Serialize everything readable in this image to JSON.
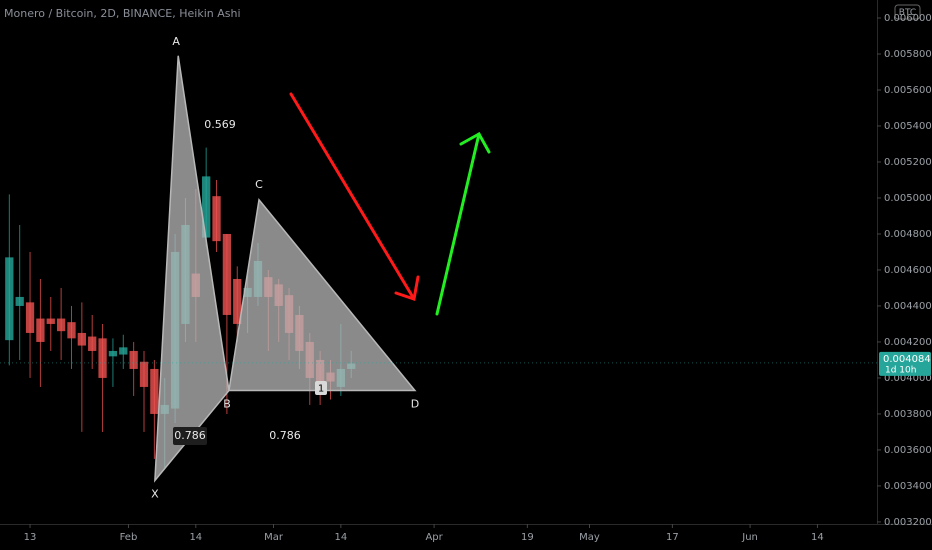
{
  "chart_data": {
    "type": "candlestick",
    "title": "Monero / Bitcoin, 2D, BINANCE, Heikin Ashi",
    "currency": "BTC",
    "x": [
      9,
      11,
      13,
      15,
      17,
      19,
      21,
      23,
      25,
      27,
      29,
      31,
      33,
      35,
      37,
      39,
      41,
      43,
      45,
      47,
      49,
      51,
      53,
      55,
      57,
      59,
      61,
      63,
      65,
      67,
      69,
      71,
      73,
      75
    ],
    "series": [
      {
        "up_color": "#26a69a",
        "down_color": "#ef5350",
        "open": [
          0.00421,
          0.0044,
          0.00442,
          0.00433,
          0.00433,
          0.00433,
          0.00431,
          0.00425,
          0.00423,
          0.00422,
          0.00412,
          0.00413,
          0.00415,
          0.00409,
          0.00405,
          0.0038,
          0.00383,
          0.0043,
          0.00458,
          0.00478,
          0.00501,
          0.0048,
          0.00455,
          0.00445,
          0.00445,
          0.00456,
          0.00452,
          0.00446,
          0.00435,
          0.0042,
          0.0041,
          0.00403,
          0.00395,
          0.00405
        ],
        "high": [
          0.00502,
          0.00485,
          0.0047,
          0.00455,
          0.00445,
          0.0045,
          0.0044,
          0.00442,
          0.00435,
          0.0043,
          0.00422,
          0.00424,
          0.0042,
          0.00415,
          0.0041,
          0.004,
          0.0048,
          0.005,
          0.00505,
          0.00528,
          0.0051,
          0.0048,
          0.00462,
          0.0046,
          0.00475,
          0.0046,
          0.00455,
          0.0045,
          0.0044,
          0.00425,
          0.00415,
          0.0041,
          0.0043,
          0.00415
        ],
        "low": [
          0.00407,
          0.0041,
          0.004,
          0.00395,
          0.00415,
          0.0041,
          0.00405,
          0.0037,
          0.00405,
          0.0037,
          0.00395,
          0.00405,
          0.0039,
          0.0037,
          0.00355,
          0.0035,
          0.00375,
          0.0042,
          0.0042,
          0.00473,
          0.0047,
          0.0038,
          0.0042,
          0.00425,
          0.0044,
          0.00415,
          0.0042,
          0.0041,
          0.00405,
          0.00385,
          0.00385,
          0.00388,
          0.0039,
          0.004
        ],
        "close": [
          0.00467,
          0.00445,
          0.00425,
          0.0042,
          0.0043,
          0.00426,
          0.00422,
          0.00418,
          0.00415,
          0.004,
          0.00415,
          0.00417,
          0.00405,
          0.00395,
          0.0038,
          0.00385,
          0.0047,
          0.00485,
          0.00445,
          0.00512,
          0.00476,
          0.00435,
          0.0043,
          0.0045,
          0.00465,
          0.00445,
          0.0044,
          0.00425,
          0.00415,
          0.004,
          0.00395,
          0.00398,
          0.00405,
          0.00408
        ]
      }
    ],
    "pattern": {
      "color": "#b8b8b8",
      "points": [
        {
          "label": "X",
          "x": 37.1,
          "y": 0.00343
        },
        {
          "label": "A",
          "x": 41.6,
          "y": 0.00579
        },
        {
          "label": "B",
          "x": 51.4,
          "y": 0.00393
        },
        {
          "label": "C",
          "x": 57.2,
          "y": 0.00499
        },
        {
          "label": "D",
          "x": 87.3,
          "y": 0.00393
        }
      ],
      "ratios": [
        0.569,
        0.786,
        0.786
      ]
    },
    "marker": "1",
    "last_price": 0.004084,
    "countdown": "1d 10h",
    "xlim": [
      7.2,
      176.5
    ],
    "ylim": [
      0.003044,
      0.0061
    ],
    "xticks": [
      {
        "value": 13,
        "label": "13"
      },
      {
        "value": 32,
        "label": "Feb"
      },
      {
        "value": 45,
        "label": "14"
      },
      {
        "value": 60,
        "label": "Mar"
      },
      {
        "value": 73,
        "label": "14"
      },
      {
        "value": 91,
        "label": "Apr"
      },
      {
        "value": 109,
        "label": "19"
      },
      {
        "value": 121,
        "label": "May"
      },
      {
        "value": 137,
        "label": "17"
      },
      {
        "value": 152,
        "label": "Jun"
      },
      {
        "value": 165,
        "label": "14"
      }
    ],
    "yticks": [
      {
        "value": 0.0032,
        "label": "0.003200"
      },
      {
        "value": 0.0034,
        "label": "0.003400"
      },
      {
        "value": 0.0036,
        "label": "0.003600"
      },
      {
        "value": 0.0038,
        "label": "0.003800"
      },
      {
        "value": 0.004,
        "label": "0.004000"
      },
      {
        "value": 0.0042,
        "label": "0.004200"
      },
      {
        "value": 0.0044,
        "label": "0.004400"
      },
      {
        "value": 0.0046,
        "label": "0.004600"
      },
      {
        "value": 0.0048,
        "label": "0.004800"
      },
      {
        "value": 0.005,
        "label": "0.005000"
      },
      {
        "value": 0.0052,
        "label": "0.005200"
      },
      {
        "value": 0.0054,
        "label": "0.005400"
      },
      {
        "value": 0.0056,
        "label": "0.005600"
      },
      {
        "value": 0.0058,
        "label": "0.005800"
      },
      {
        "value": 0.006,
        "label": "0.006000"
      }
    ],
    "grid": false
  }
}
